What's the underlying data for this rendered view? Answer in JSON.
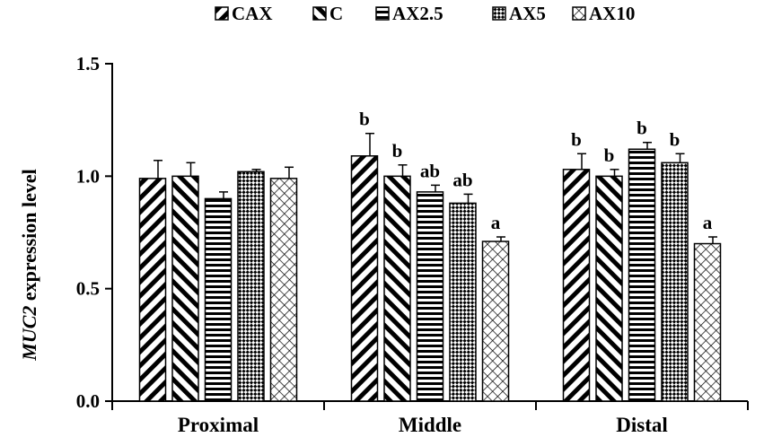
{
  "chart_data": {
    "type": "bar",
    "categories": [
      "Proximal",
      "Middle",
      "Distal"
    ],
    "ylabel": "MUC2 expression level",
    "ylabel_italic_part": "MUC2",
    "ylabel_rest": " expression level",
    "ylim": [
      0,
      1.5
    ],
    "yticks": [
      "0.0",
      "0.5",
      "1.0",
      "1.5"
    ],
    "grid": false,
    "legend_position": "top",
    "series": [
      {
        "name": "CAX",
        "pattern": "diag-up",
        "values": [
          0.99,
          1.09,
          1.03
        ],
        "errors": [
          0.08,
          0.1,
          0.07
        ],
        "labels": [
          "",
          "b",
          "b"
        ]
      },
      {
        "name": "C",
        "pattern": "diag-down",
        "values": [
          1.0,
          1.0,
          1.0
        ],
        "errors": [
          0.06,
          0.05,
          0.03
        ],
        "labels": [
          "",
          "b",
          "b"
        ]
      },
      {
        "name": "AX2.5",
        "pattern": "horizontal",
        "values": [
          0.9,
          0.93,
          1.12
        ],
        "errors": [
          0.03,
          0.03,
          0.03
        ],
        "labels": [
          "",
          "ab",
          "b"
        ]
      },
      {
        "name": "AX5",
        "pattern": "checker",
        "values": [
          1.02,
          0.88,
          1.06
        ],
        "errors": [
          0.01,
          0.04,
          0.04
        ],
        "labels": [
          "",
          "ab",
          "b"
        ]
      },
      {
        "name": "AX10",
        "pattern": "diamond",
        "values": [
          0.99,
          0.71,
          0.7
        ],
        "errors": [
          0.05,
          0.02,
          0.03
        ],
        "labels": [
          "",
          "a",
          "a"
        ]
      }
    ]
  }
}
